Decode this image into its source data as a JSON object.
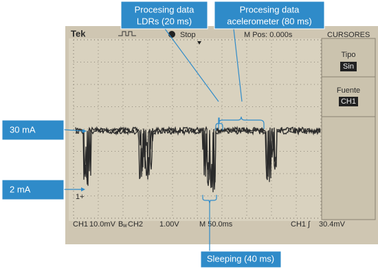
{
  "callouts": {
    "ldrs": {
      "lines": [
        "Procesing data",
        "LDRs (20 ms)"
      ]
    },
    "accel": {
      "lines": [
        "Procesing data",
        "acelerometer (80 ms)"
      ]
    },
    "high": {
      "label": "30 mA"
    },
    "low": {
      "label": "2 mA"
    },
    "sleep": {
      "label": "Sleeping (40 ms)"
    }
  },
  "scope": {
    "brand": "Tek",
    "state": "Stop",
    "position": "M Pos: 0.000s",
    "menu_title": "CURSORES",
    "menu": [
      {
        "label": "Tipo",
        "value": "Sin"
      },
      {
        "label": "Fuente",
        "value": "CH1"
      }
    ],
    "channel_marker": "1+",
    "status": [
      "CH1",
      "10.0mV",
      "B",
      "w",
      "CH2",
      "1.00V",
      "M 50.0ms",
      "CH1 ∫",
      "30.4mV"
    ]
  }
}
